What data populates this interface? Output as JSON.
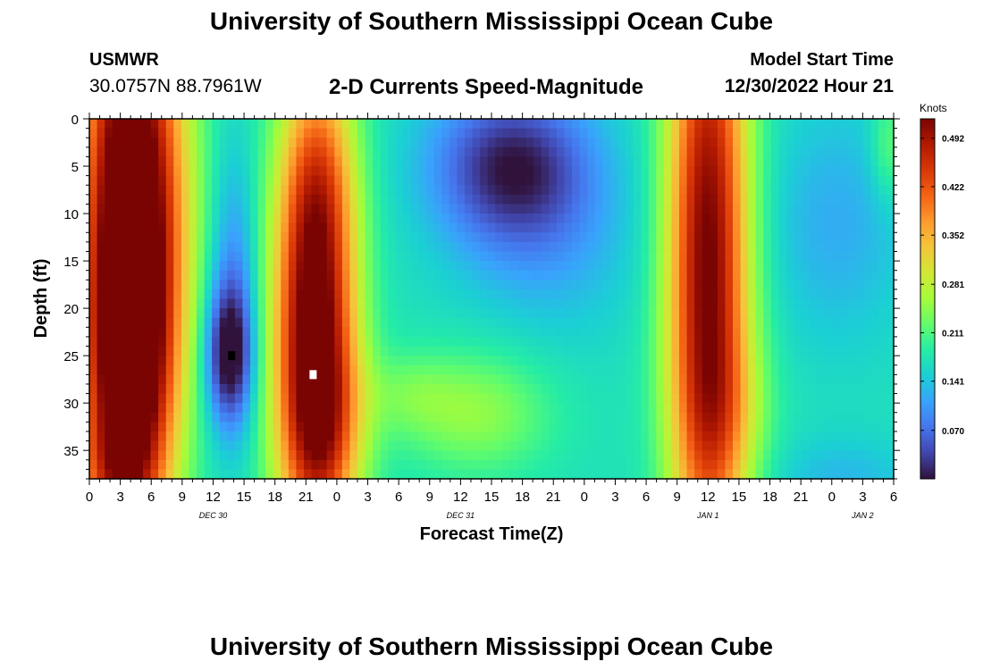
{
  "header": {
    "title": "University of Southern Mississippi Ocean Cube",
    "station": "USMWR",
    "coords": "30.0757N  88.7961W",
    "subtitle": "2-D Currents Speed-Magnitude",
    "model_start_label": "Model Start Time",
    "model_start_value": "12/30/2022 Hour 21"
  },
  "footer": {
    "title": "University of Southern Mississippi Ocean Cube"
  },
  "colors": {
    "colormap": [
      "#30123b",
      "#4145ab",
      "#4675ed",
      "#39a2fc",
      "#1bcfd4",
      "#24eca6",
      "#61fc6c",
      "#a4fc3b",
      "#d1e834",
      "#f3c63a",
      "#fe9b2d",
      "#f36315",
      "#d93806",
      "#b11901",
      "#7a0402"
    ]
  },
  "chart_data": {
    "type": "heatmap",
    "title": "2-D Currents Speed-Magnitude",
    "xlabel": "Forecast Time(Z)",
    "ylabel": "Depth (ft)",
    "colorbar_label": "Knots",
    "colorbar_ticks": [
      "0.492",
      "0.422",
      "0.352",
      "0.281",
      "0.211",
      "0.141",
      "0.070"
    ],
    "colorbar_tick_values": [
      0.492,
      0.422,
      0.352,
      0.281,
      0.211,
      0.141,
      0.07
    ],
    "value_range": [
      0.0,
      0.52
    ],
    "xlim": [
      0,
      78
    ],
    "ylim": [
      0,
      38
    ],
    "x_tick_hours": [
      0,
      3,
      6,
      9,
      12,
      15,
      18,
      21,
      24,
      27,
      30,
      33,
      36,
      39,
      42,
      45,
      48,
      51,
      54,
      57,
      60,
      63,
      66,
      69,
      72,
      75,
      78
    ],
    "x_tick_labels": [
      "0",
      "3",
      "6",
      "9",
      "12",
      "15",
      "18",
      "21",
      "0",
      "3",
      "6",
      "9",
      "12",
      "15",
      "18",
      "21",
      "0",
      "3",
      "6",
      "9",
      "12",
      "15",
      "18",
      "21",
      "0",
      "3",
      "6"
    ],
    "y_ticks": [
      0,
      5,
      10,
      15,
      20,
      25,
      30,
      35
    ],
    "y_tick_labels": [
      "0",
      "5",
      "10",
      "15",
      "20",
      "25",
      "30",
      "35"
    ],
    "date_labels": [
      {
        "label": "DEC 30",
        "hour": 12
      },
      {
        "label": "DEC 31",
        "hour": 36
      },
      {
        "label": "JAN 1",
        "hour": 60
      },
      {
        "label": "JAN 2",
        "hour": 75
      }
    ],
    "markers": [
      {
        "name": "min-marker",
        "hour": 13.8,
        "depth": 25,
        "color": "#000000"
      },
      {
        "name": "max-marker",
        "hour": 21.7,
        "depth": 27,
        "color": "#ffffff"
      }
    ],
    "blobs": [
      {
        "h": 3.5,
        "d": 14,
        "sh": 3.2,
        "sd": 25,
        "a": 0.42
      },
      {
        "h": 4.5,
        "d": 27,
        "sh": 3.0,
        "sd": 10,
        "a": 0.12
      },
      {
        "h": 7.2,
        "d": 8,
        "sh": 2.8,
        "sd": 14,
        "a": 0.1
      },
      {
        "h": 1.5,
        "d": 37,
        "sh": 3.0,
        "sd": 4,
        "a": 0.05
      },
      {
        "h": 13.5,
        "d": 25,
        "sh": 1.6,
        "sd": 5,
        "a": -0.16
      },
      {
        "h": 14.0,
        "d": 18,
        "sh": 1.6,
        "sd": 10,
        "a": -0.08
      },
      {
        "h": 21.8,
        "d": 22,
        "sh": 2.8,
        "sd": 16,
        "a": 0.38
      },
      {
        "h": 22.5,
        "d": 5,
        "sh": 2.5,
        "sd": 8,
        "a": 0.08
      },
      {
        "h": 23.0,
        "d": 33,
        "sh": 2.8,
        "sd": 7,
        "a": 0.1
      },
      {
        "h": 41.0,
        "d": 5,
        "sh": 5.5,
        "sd": 6,
        "a": -0.16
      },
      {
        "h": 45.0,
        "d": 14,
        "sh": 6.0,
        "sd": 7,
        "a": -0.04
      },
      {
        "h": 37.5,
        "d": 31,
        "sh": 5.0,
        "sd": 4.5,
        "a": 0.08
      },
      {
        "h": 31.0,
        "d": 29,
        "sh": 3.0,
        "sd": 3,
        "a": 0.04
      },
      {
        "h": 60.0,
        "d": 15,
        "sh": 2.8,
        "sd": 25,
        "a": 0.36
      },
      {
        "h": 62.0,
        "d": 31,
        "sh": 3.0,
        "sd": 6,
        "a": 0.05
      },
      {
        "h": 72.5,
        "d": 11,
        "sh": 5.0,
        "sd": 9,
        "a": -0.05
      },
      {
        "h": 73.0,
        "d": 38,
        "sh": 5.0,
        "sd": 3,
        "a": -0.04
      },
      {
        "h": 77.5,
        "d": 3,
        "sh": 1.2,
        "sd": 4,
        "a": 0.06
      }
    ],
    "base_value": 0.17
  }
}
